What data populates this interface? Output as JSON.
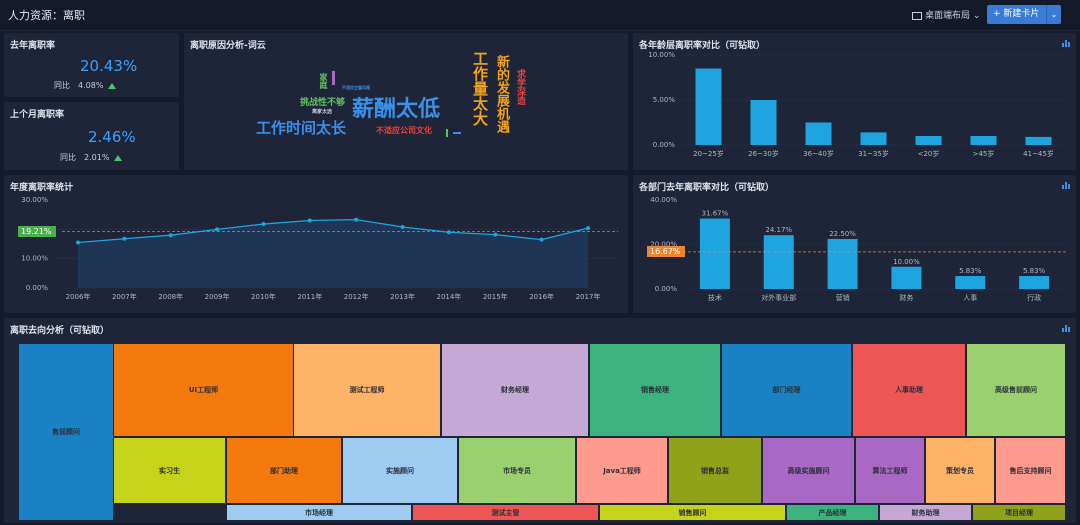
{
  "header": {
    "title": "人力资源：离职",
    "layout_label": "桌面端布局",
    "new_card_label": "新建卡片"
  },
  "kpi_last_year": {
    "title": "去年离职率",
    "value": "20.43%",
    "compare_label": "同比",
    "compare_value": "4.08%"
  },
  "kpi_last_month": {
    "title": "上个月离职率",
    "value": "2.46%",
    "compare_label": "同比",
    "compare_value": "2.01%"
  },
  "wordcloud": {
    "title": "离职原因分析-词云",
    "words": [
      {
        "text": "薪酬太低",
        "color": "#3a8fe8"
      },
      {
        "text": "工作时间太长",
        "color": "#3a8fe8"
      },
      {
        "text": "工作量太大",
        "color": "#f2a21b"
      },
      {
        "text": "新的发展机遇",
        "color": "#f2a21b"
      },
      {
        "text": "求学深造",
        "color": "#e8453c"
      },
      {
        "text": "挑战性不够",
        "color": "#5fc25f"
      },
      {
        "text": "不适应公司文化",
        "color": "#e8453c"
      },
      {
        "text": "家庭",
        "color": "#5fc25f"
      },
      {
        "text": "离家太远",
        "color": "#c8cfdc"
      },
      {
        "text": "不适应主管风格",
        "color": "#3a8fe8"
      }
    ]
  },
  "age_chart": {
    "title": "各年龄层离职率对比（可钻取）",
    "chart_data": {
      "type": "bar",
      "categories": [
        "20~25岁",
        "26~30岁",
        "36~40岁",
        "31~35岁",
        "<20岁",
        ">45岁",
        "41~45岁"
      ],
      "values": [
        8.5,
        5.0,
        2.5,
        1.4,
        1.0,
        1.0,
        0.9
      ],
      "ylim": [
        0,
        10
      ],
      "yticks": [
        "0.00%",
        "5.00%",
        "10.00%"
      ],
      "color": "#1ea5e0"
    }
  },
  "annual_chart": {
    "title": "年度离职率统计",
    "avg_label": "19.21%",
    "chart_data": {
      "type": "line",
      "x": [
        "2006年",
        "2007年",
        "2008年",
        "2009年",
        "2010年",
        "2011年",
        "2012年",
        "2013年",
        "2014年",
        "2015年",
        "2016年",
        "2017年"
      ],
      "values": [
        15.5,
        16.8,
        18.0,
        20.0,
        21.8,
        23.0,
        23.3,
        20.8,
        19.0,
        18.2,
        16.5,
        20.4
      ],
      "average": 19.21,
      "ylim": [
        0,
        30
      ],
      "yticks": [
        "0.00%",
        "10.00%",
        "20.00%",
        "30.00%"
      ],
      "color": "#1ea5e0"
    }
  },
  "dept_chart": {
    "title": "各部门去年离职率对比（可钻取）",
    "avg_label": "16.67%",
    "chart_data": {
      "type": "bar",
      "categories": [
        "技术",
        "对外事业部",
        "营销",
        "财务",
        "人事",
        "行政"
      ],
      "values": [
        31.67,
        24.17,
        22.5,
        10.0,
        5.83,
        5.83
      ],
      "labels": [
        "31.67%",
        "24.17%",
        "22.50%",
        "10.00%",
        "5.83%",
        "5.83%"
      ],
      "average": 16.67,
      "ylim": [
        0,
        40
      ],
      "yticks": [
        "0.00%",
        "20.00%",
        "40.00%"
      ],
      "color": "#1ea5e0"
    }
  },
  "treemap": {
    "title": "离职去向分析（可钻取）",
    "cells": [
      {
        "label": "售前顾问",
        "color": "#1a82c4"
      },
      {
        "label": "UI工程师",
        "color": "#f57a0d"
      },
      {
        "label": "测试工程师",
        "color": "#ffb366"
      },
      {
        "label": "财务经理",
        "color": "#c6a8d4"
      },
      {
        "label": "销售经理",
        "color": "#3cb27e"
      },
      {
        "label": "部门经理",
        "color": "#1a82c4"
      },
      {
        "label": "人事助理",
        "color": "#ee5555"
      },
      {
        "label": "高级售前顾问",
        "color": "#9ad06e"
      },
      {
        "label": "实习生",
        "color": "#c5d31a"
      },
      {
        "label": "部门助理",
        "color": "#f57a0d"
      },
      {
        "label": "实施顾问",
        "color": "#9dcbf2"
      },
      {
        "label": "市场专员",
        "color": "#9ad06e"
      },
      {
        "label": "Java工程师",
        "color": "#ff9a8e"
      },
      {
        "label": "销售总监",
        "color": "#8fa21a"
      },
      {
        "label": "高级实施顾问",
        "color": "#a868c4"
      },
      {
        "label": "算法工程师",
        "color": "#a868c4"
      },
      {
        "label": "策划专员",
        "color": "#ffb366"
      },
      {
        "label": "售后支持顾问",
        "color": "#ff9a8e"
      },
      {
        "label": "市场经理",
        "color": "#9dcbf2"
      },
      {
        "label": "测试主管",
        "color": "#ee5555"
      },
      {
        "label": "销售顾问",
        "color": "#c5d31a"
      },
      {
        "label": "产品经理",
        "color": "#3cb27e"
      },
      {
        "label": "财务助理",
        "color": "#c6a8d4"
      },
      {
        "label": "项目经理",
        "color": "#8fa21a"
      }
    ]
  }
}
